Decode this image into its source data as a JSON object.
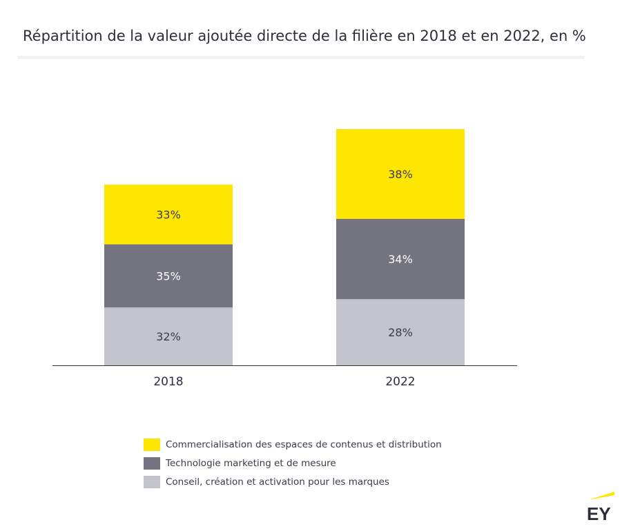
{
  "chart_data": {
    "type": "bar",
    "stacked": true,
    "title": "Répartition de la valeur ajoutée directe de la filière en 2018 et en 2022, en %",
    "categories": [
      "2018",
      "2022"
    ],
    "series": [
      {
        "name": "Conseil, création et activation pour les marques",
        "values": [
          32,
          28
        ],
        "labels": [
          "32%",
          "28%"
        ],
        "color": "#c4c4cd"
      },
      {
        "name": "Technologie marketing et de mesure",
        "values": [
          35,
          34
        ],
        "labels": [
          "35%",
          "34%"
        ],
        "color": "#747480"
      },
      {
        "name": "Commercialisation des espaces de contenus et distribution",
        "values": [
          33,
          38
        ],
        "labels": [
          "33%",
          "38%"
        ],
        "color": "#ffe600"
      }
    ],
    "bar_totals_relative": [
      0.765,
      1.0
    ],
    "legend_position": "bottom",
    "grid": false
  },
  "brand": {
    "logo_text": "EY",
    "accent": "#ffe600",
    "text_color": "#2e2e38"
  }
}
